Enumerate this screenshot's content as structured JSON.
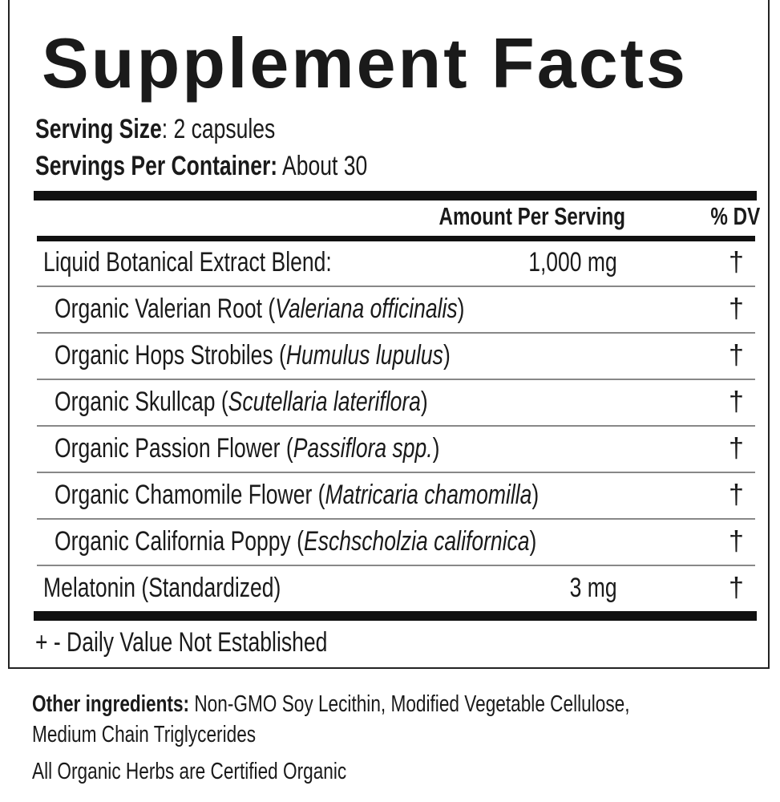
{
  "title": "Supplement Facts",
  "serving_size": {
    "label": "Serving Size",
    "value": ": 2 capsules"
  },
  "servings_per_container": {
    "label": "Servings Per Container:",
    "value": " About 30"
  },
  "headers": {
    "amount": "Amount Per Serving",
    "dv": "% DV"
  },
  "rows": [
    {
      "name": "Liquid Botanical Extract Blend:",
      "latin": "",
      "amount": "1,000 mg",
      "dv": "†"
    },
    {
      "name": "Organic Valerian Root (",
      "latin": "Valeriana officinalis",
      "close": ")",
      "amount": "",
      "dv": "†"
    },
    {
      "name": "Organic Hops Strobiles (",
      "latin": "Humulus lupulus",
      "close": ")",
      "amount": "",
      "dv": "†"
    },
    {
      "name": "Organic Skullcap (",
      "latin": "Scutellaria lateriflora",
      "close": ")",
      "amount": "",
      "dv": "†"
    },
    {
      "name": "Organic Passion Flower (",
      "latin": "Passiflora spp.",
      "close": ")",
      "amount": "",
      "dv": "†"
    },
    {
      "name": "Organic Chamomile Flower (",
      "latin": "Matricaria chamomilla",
      "close": ")",
      "amount": "",
      "dv": "†"
    },
    {
      "name": "Organic California Poppy (",
      "latin": "Eschscholzia californica",
      "close": ")",
      "amount": "",
      "dv": "†"
    },
    {
      "name": "Melatonin (Standardized)",
      "latin": "",
      "amount": "3 mg",
      "dv": "†"
    }
  ],
  "footnote": "+ - Daily Value Not Established",
  "other_ingredients": {
    "label": "Other ingredients:",
    "value": " Non-GMO Soy Lecithin, Modified Vegetable Cellulose,",
    "value2": "Medium Chain Triglycerides"
  },
  "organic_note": "All Organic Herbs are Certified Organic"
}
